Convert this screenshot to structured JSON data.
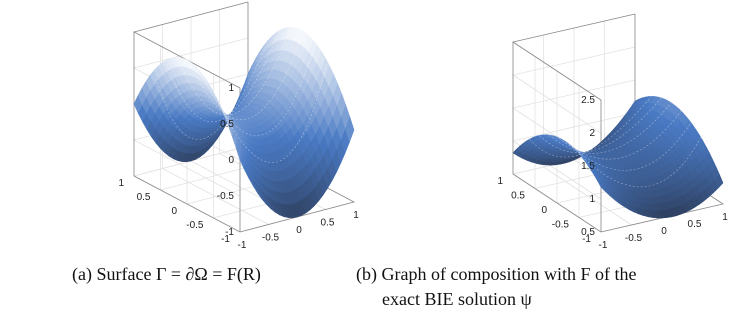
{
  "chart_data": [
    {
      "type": "surface",
      "caption": "(a)  Surface Γ = ∂Ω = F(R)",
      "x_ticks": [
        "-1",
        "-0.5",
        "0",
        "0.5",
        "1"
      ],
      "y_ticks": [
        "-1",
        "-0.5",
        "0",
        "0.5",
        "1"
      ],
      "z_ticks": [
        "-1",
        "-0.5",
        "0",
        "0.5",
        "1"
      ],
      "xlim": [
        -1,
        1
      ],
      "ylim": [
        -1,
        1
      ],
      "zlim": [
        -1,
        1
      ],
      "grid": true,
      "colormap": [
        "#2e3f5e",
        "#4a7ac4",
        "#ffffff"
      ]
    },
    {
      "type": "surface",
      "caption_line1": "(b)  Graph of composition with F of the",
      "caption_line2": "exact BIE solution ψ",
      "x_ticks": [
        "-1",
        "-0.5",
        "0",
        "0.5",
        "1"
      ],
      "y_ticks": [
        "-1",
        "-0.5",
        "0",
        "0.5",
        "1"
      ],
      "z_ticks": [
        "0.5",
        "1",
        "1.5",
        "2",
        "2.5"
      ],
      "xlim": [
        -1,
        1
      ],
      "ylim": [
        -1,
        1
      ],
      "zlim": [
        0.5,
        2.5
      ],
      "grid": true,
      "colormap": [
        "#2e3f5e",
        "#4a7ac4",
        "#ffffff"
      ]
    }
  ]
}
